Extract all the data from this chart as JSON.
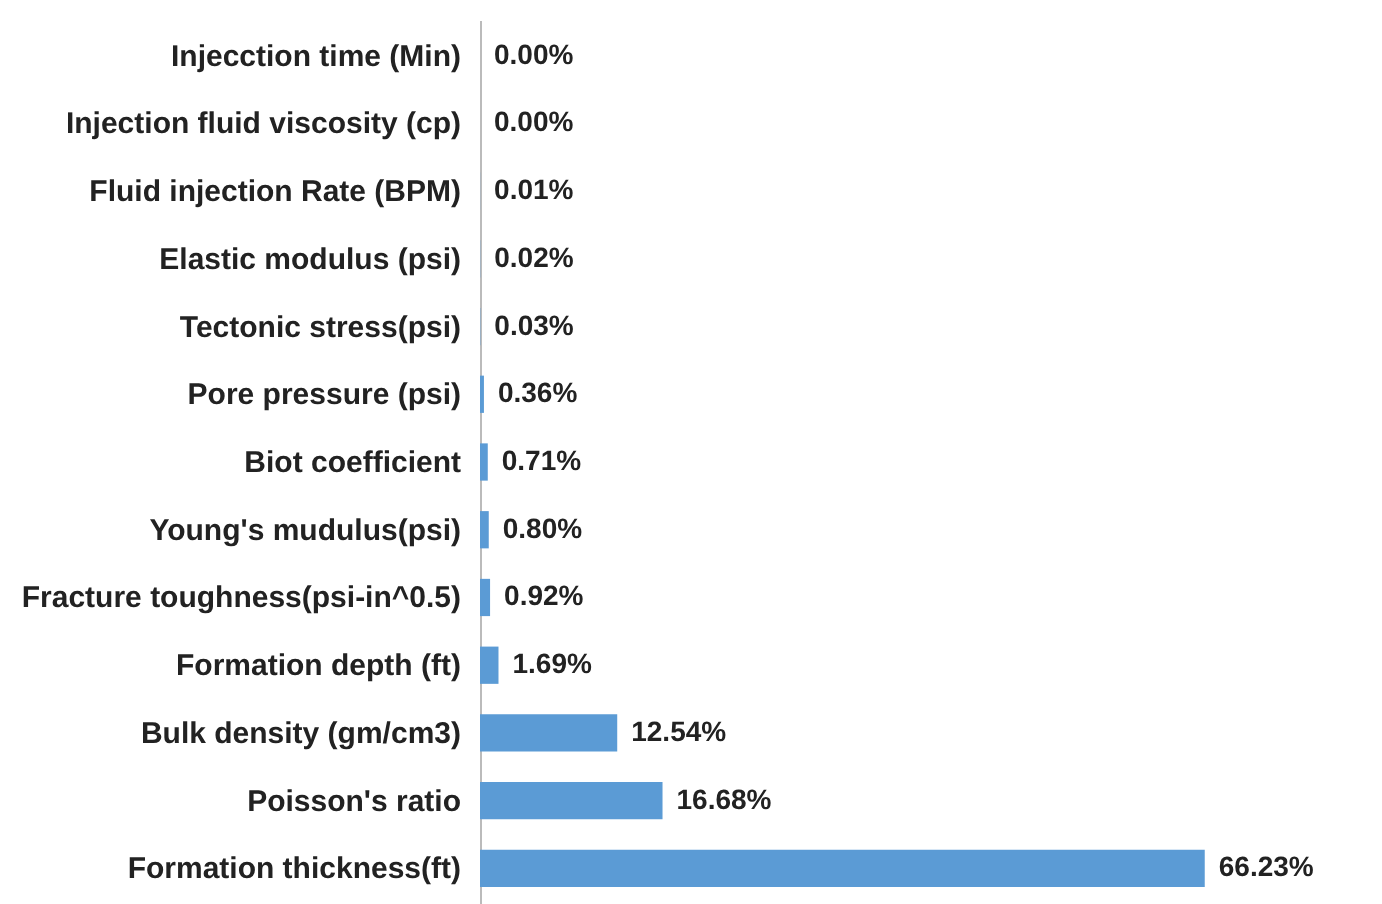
{
  "chart_data": {
    "type": "bar",
    "orientation": "horizontal",
    "categories": [
      "Injecction time (Min)",
      "Injection fluid viscosity (cp)",
      "Fluid injection Rate (BPM)",
      "Elastic modulus (psi)",
      "Tectonic stress(psi)",
      "Pore pressure (psi)",
      "Biot coefficient",
      "Young's mudulus(psi)",
      "Fracture toughness(psi-in^0.5)",
      "Formation depth (ft)",
      "Bulk density (gm/cm3)",
      "Poisson's ratio",
      "Formation thickness(ft)"
    ],
    "values": [
      0,
      0,
      0.01,
      0.02,
      0.03,
      0.36,
      0.71,
      0.8,
      0.92,
      1.69,
      12.54,
      16.68,
      66.23
    ],
    "value_labels": [
      "0.00%",
      "0.00%",
      "0.01%",
      "0.02%",
      "0.03%",
      "0.36%",
      "0.71%",
      "0.80%",
      "0.92%",
      "1.69%",
      "12.54%",
      "16.68%",
      "66.23%"
    ],
    "color": "#5b9bd5"
  }
}
